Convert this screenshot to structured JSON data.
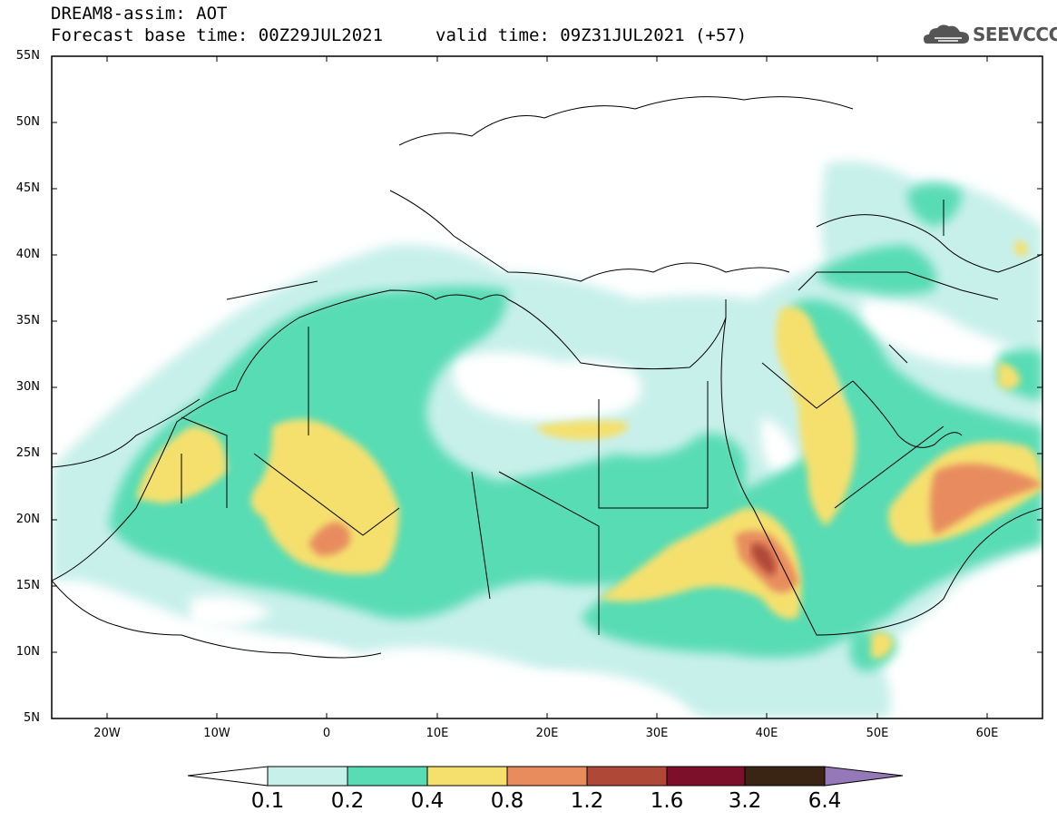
{
  "header": {
    "title": "DREAM8-assim: AOT",
    "base_time": "Forecast base time: 00Z29JUL2021",
    "valid_time": "valid time: 09Z31JUL2021 (+57)",
    "logo_text": "SEEVCCC"
  },
  "map": {
    "lat_labels": [
      "55N",
      "50N",
      "45N",
      "40N",
      "35N",
      "30N",
      "25N",
      "20N",
      "15N",
      "10N",
      "5N"
    ],
    "lon_labels": [
      "20W",
      "10W",
      "0",
      "10E",
      "20E",
      "30E",
      "40E",
      "50E",
      "60E"
    ],
    "lat_range": [
      5,
      55
    ],
    "lon_range": [
      -25,
      65
    ]
  },
  "colorbar": {
    "levels": [
      "0.1",
      "0.2",
      "0.4",
      "0.8",
      "1.2",
      "1.6",
      "3.2",
      "6.4"
    ],
    "colors": [
      "#c8f0ea",
      "#58dcb4",
      "#f5e06e",
      "#e88c5e",
      "#b04838",
      "#7c0f2a",
      "#3a2414",
      "#9478b8"
    ],
    "under_color": "#ffffff"
  }
}
